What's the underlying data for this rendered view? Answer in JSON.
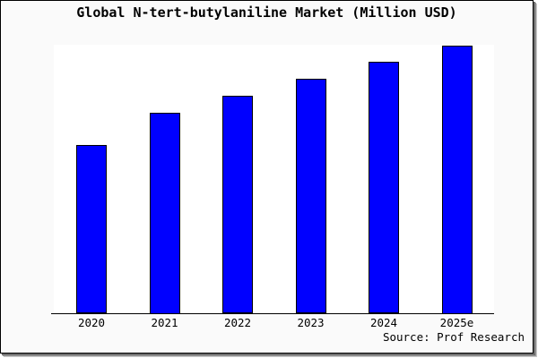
{
  "window": {
    "background_color": "#fafafa",
    "frame_border_color": "#000000",
    "shadow_color": "#9a9a9a"
  },
  "chart_data": {
    "type": "bar",
    "title": "Global N-tert-butylaniline Market (Million USD)",
    "categories": [
      "2020",
      "2021",
      "2022",
      "2023",
      "2024",
      "2025e"
    ],
    "values": [
      62.7,
      75.0,
      81.3,
      87.6,
      93.7,
      100.0
    ],
    "value_note": "y-axis is unlabeled in the image; values are relative bar heights normalized so 2025e = 100",
    "xlabel": "",
    "ylabel": "",
    "ylim": [
      0,
      100
    ],
    "grid": false,
    "legend": false,
    "plot_background": "#ffffff",
    "bar_color": "#0000ff",
    "bar_border_color": "#000000",
    "axis_line_color": "#000000",
    "source": "Source: Prof Research"
  }
}
